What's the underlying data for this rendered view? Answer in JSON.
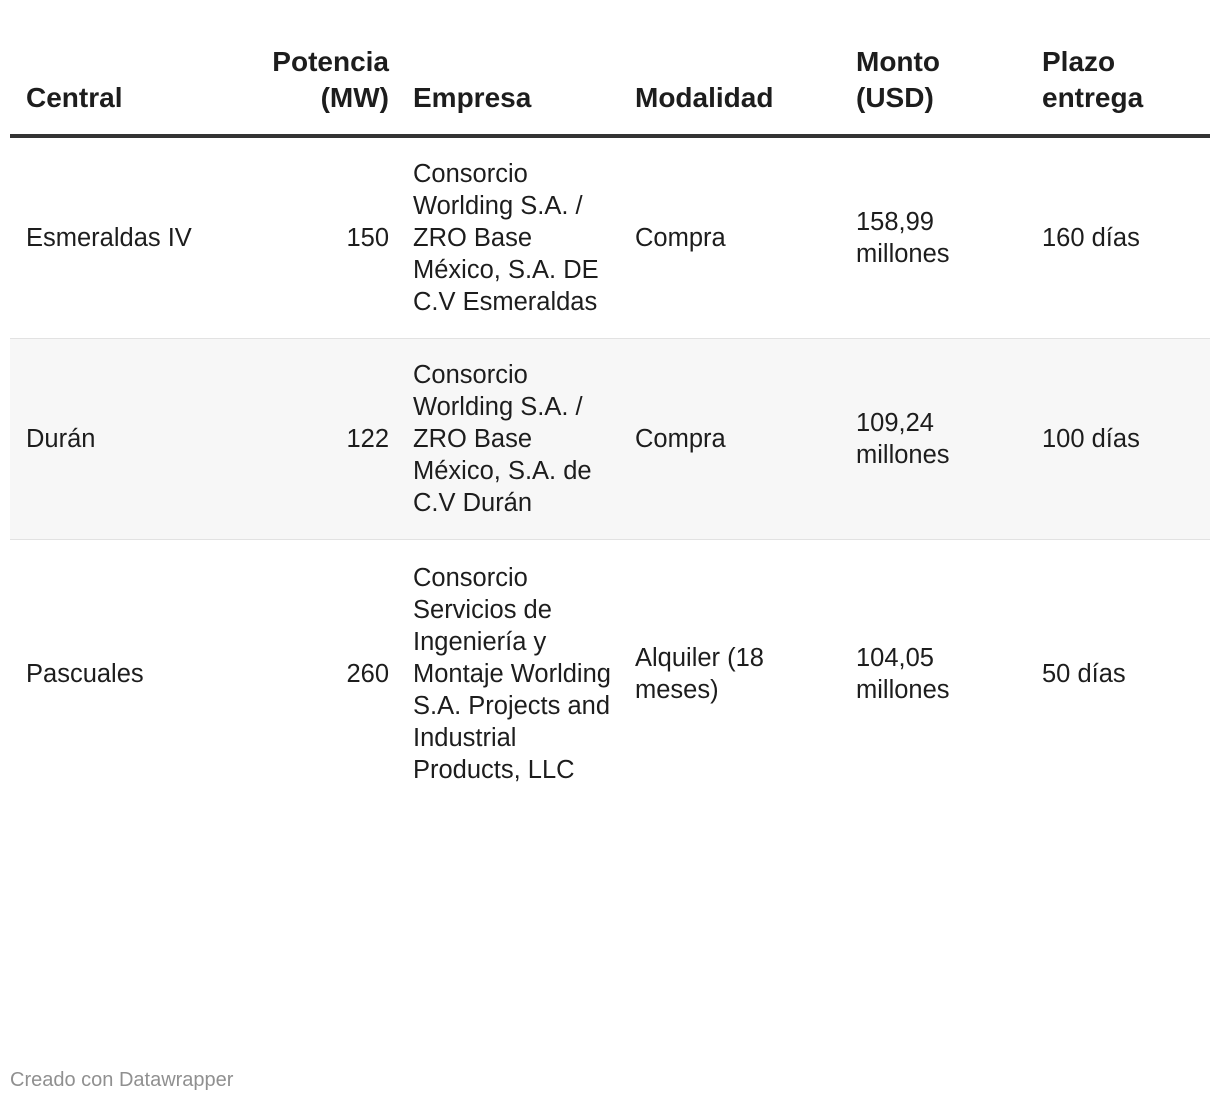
{
  "chart_data": {
    "type": "table",
    "columns": [
      {
        "label": "Central"
      },
      {
        "label": "Potencia (MW)"
      },
      {
        "label": "Empresa"
      },
      {
        "label": "Modalidad"
      },
      {
        "label": "Monto (USD)"
      },
      {
        "label": "Plazo entrega"
      }
    ],
    "rows": [
      {
        "central": "Esmeraldas IV",
        "potencia": "150",
        "empresa": "Consorcio Worlding S.A. / ZRO Base México, S.A. DE C.V Esmeraldas",
        "modalidad": "Compra",
        "monto": "158,99 millones",
        "plazo": "160 días"
      },
      {
        "central": "Durán",
        "potencia": "122",
        "empresa": "Consorcio Worlding S.A. / ZRO Base México, S.A. de C.V Durán",
        "modalidad": "Compra",
        "monto": "109,24 millones",
        "plazo": "100 días"
      },
      {
        "central": "Pascuales",
        "potencia": "260",
        "empresa": "Consorcio Servicios de Ingeniería y Montaje Worlding S.A. Projects and Industrial Products, LLC",
        "modalidad": "Alquiler (18 meses)",
        "monto": "104,05 millones",
        "plazo": "50 días"
      }
    ]
  },
  "footer": {
    "credit": "Creado con Datawrapper"
  },
  "colors": {
    "header_rule": "#333333",
    "stripe": "#f7f7f7",
    "row_rule": "#e2e2e2",
    "footer_text": "#909090"
  }
}
